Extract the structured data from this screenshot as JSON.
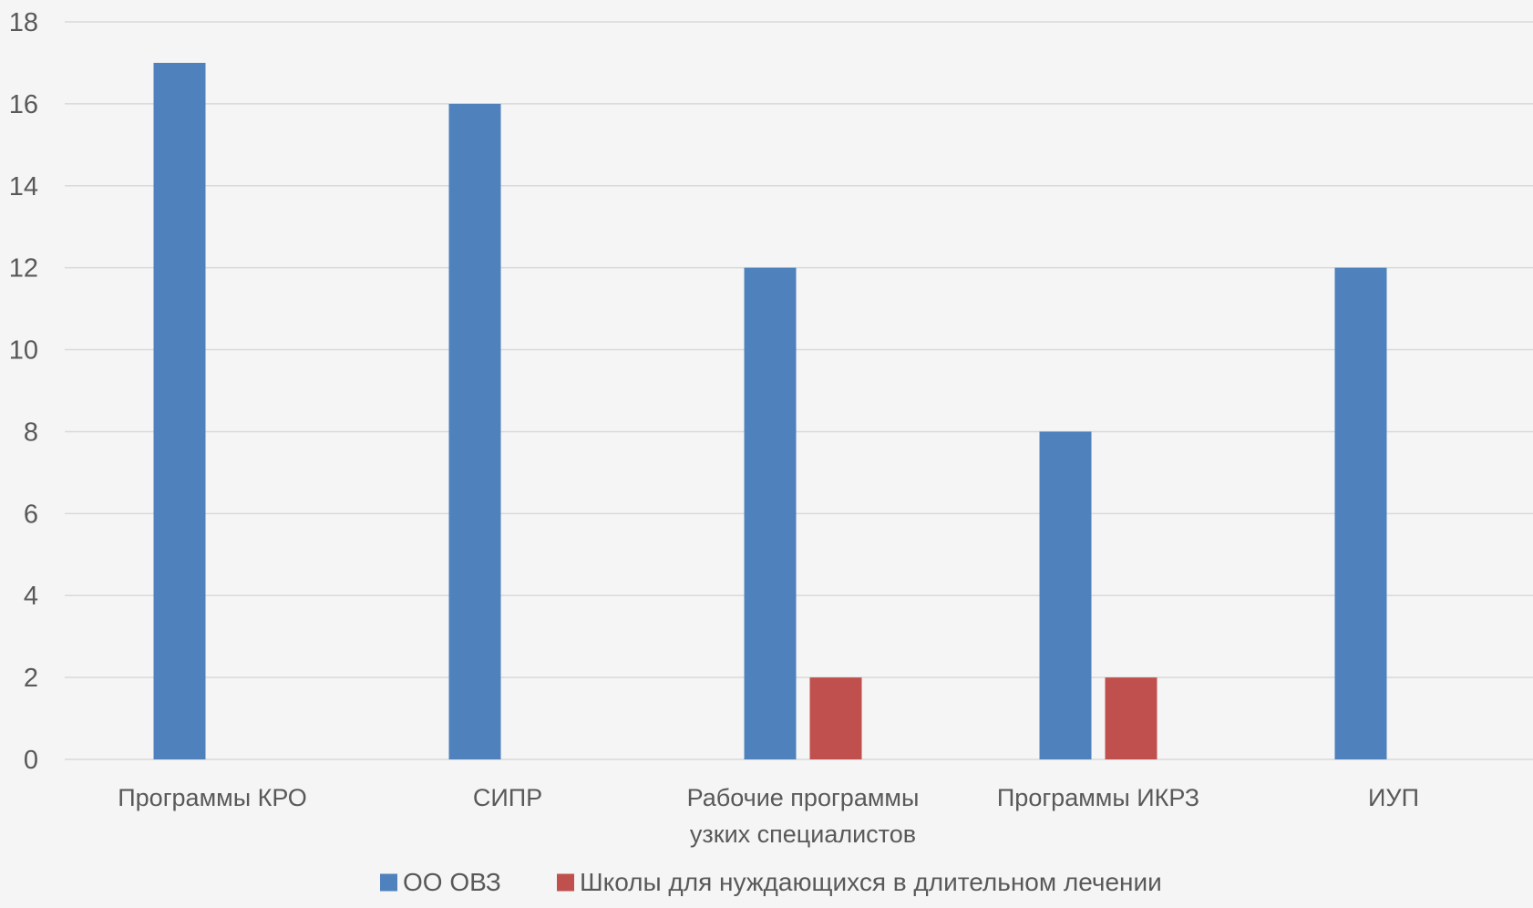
{
  "chart_data": {
    "type": "bar",
    "title": "",
    "xlabel": "",
    "ylabel": "",
    "ylim": [
      0,
      18
    ],
    "yticks": [
      "0",
      "2",
      "4",
      "6",
      "8",
      "10",
      "12",
      "14",
      "16",
      "18"
    ],
    "grid": true,
    "legend_position": "bottom",
    "categories": [
      [
        "Программы КРО"
      ],
      [
        "СИПР"
      ],
      [
        "Рабочие программы",
        "узких специалистов"
      ],
      [
        "Программы ИКРЗ"
      ],
      [
        "ИУП"
      ]
    ],
    "series": [
      {
        "name": "ОО ОВЗ",
        "color": "#4f81bd",
        "values": [
          17,
          16,
          12,
          8,
          12
        ]
      },
      {
        "name": "Школы для нуждающихся в длительном лечении",
        "color": "#c0504d",
        "values": [
          0,
          0,
          2,
          2,
          0
        ]
      }
    ],
    "gridline_color": "#d9d9d9",
    "text_color": "#595959",
    "background_color": "#f5f5f5"
  }
}
